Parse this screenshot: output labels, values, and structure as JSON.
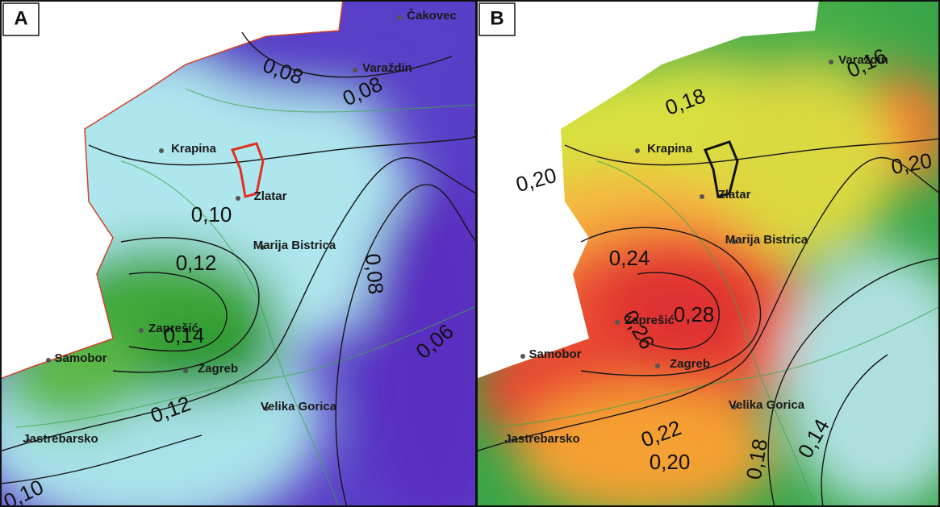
{
  "panels": [
    {
      "label": "A",
      "contour_labels": [
        "0,08",
        "0,08",
        "0,10",
        "0,12",
        "0,14",
        "0,12",
        "0,10",
        "0,08",
        "0,06"
      ],
      "places": [
        "Čakovec",
        "Varaždin",
        "Krapina",
        "Zaprešić",
        "Samobor",
        "Zagreb",
        "Jastrebarsko",
        "Velika Gorica",
        "Marija Bistrica",
        "Zlatar"
      ]
    },
    {
      "label": "B",
      "contour_labels": [
        "0,16",
        "0,18",
        "0,20",
        "0,20",
        "0,24",
        "0,28",
        "0,26",
        "0,22",
        "0,20",
        "0,18",
        "0,14"
      ],
      "places": [
        "Varaždin",
        "Krapina",
        "Zaprešić",
        "Samobor",
        "Zagreb",
        "Jastrebarsko",
        "Velika Gorica",
        "Marija Bistrica",
        "Zlatar"
      ]
    }
  ]
}
